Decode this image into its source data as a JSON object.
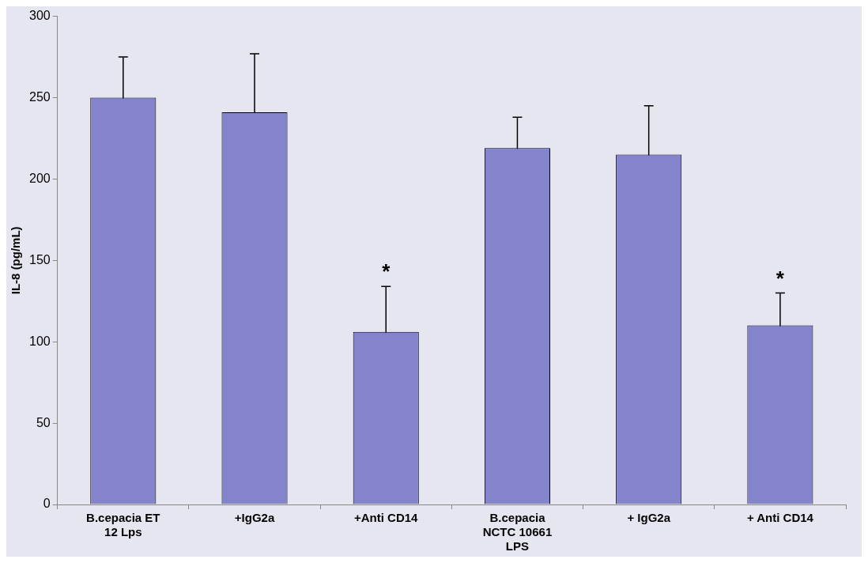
{
  "chart_data": {
    "type": "bar",
    "ylabel": "IL-8 (pg/mL)",
    "categories": [
      "B.cepacia ET 12 Lps",
      "+IgG2a",
      "+Anti CD14",
      "B.cepacia NCTC 10661 LPS",
      "+ IgG2a",
      "+ Anti CD14"
    ],
    "values": [
      250,
      241,
      106,
      219,
      215,
      110
    ],
    "errors": [
      25,
      36,
      28,
      19,
      30,
      20
    ],
    "color": "#8484cc",
    "ylim": [
      0,
      300
    ],
    "yticks": [
      0,
      50,
      100,
      150,
      200,
      250,
      300
    ],
    "annotations": [
      {
        "text": "*",
        "x": "+Anti CD14",
        "y": 134
      },
      {
        "text": "*",
        "x": "+ Anti CD14",
        "y": 130
      }
    ]
  }
}
